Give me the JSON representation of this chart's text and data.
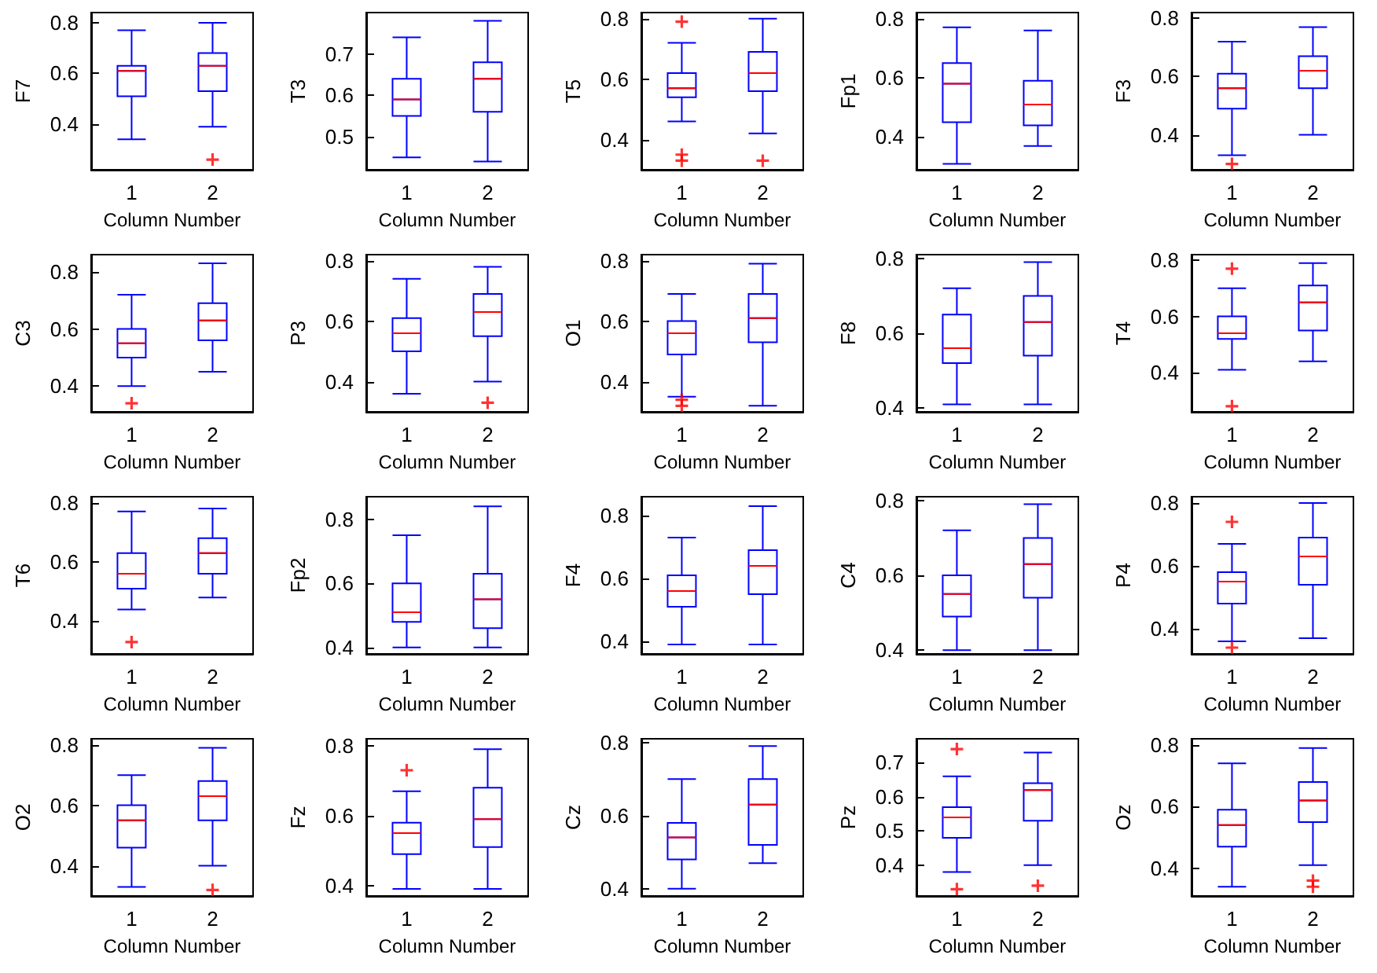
{
  "chart_data": [
    {
      "type": "box",
      "ylabel": "F7",
      "xlabel": "Column Number",
      "categories": [
        "1",
        "2"
      ],
      "ylim": [
        0.22,
        0.84
      ],
      "yticks": [
        0.4,
        0.6,
        0.8
      ],
      "grid": false,
      "series": [
        {
          "color": "#0000ff",
          "boxes": [
            {
              "low": 0.34,
              "q1": 0.51,
              "median": 0.61,
              "q3": 0.63,
              "high": 0.77
            },
            {
              "low": 0.39,
              "q1": 0.53,
              "median": 0.63,
              "q3": 0.68,
              "high": 0.8,
              "outliers": [
                0.26
              ]
            }
          ]
        }
      ]
    },
    {
      "type": "box",
      "ylabel": "T3",
      "xlabel": "Column Number",
      "categories": [
        "1",
        "2"
      ],
      "ylim": [
        0.42,
        0.8
      ],
      "yticks": [
        0.5,
        0.6,
        0.7
      ],
      "grid": false,
      "series": [
        {
          "color": "#0000ff",
          "boxes": [
            {
              "low": 0.45,
              "q1": 0.55,
              "median": 0.59,
              "q3": 0.64,
              "high": 0.74
            },
            {
              "low": 0.44,
              "q1": 0.56,
              "median": 0.64,
              "q3": 0.68,
              "high": 0.78
            }
          ]
        }
      ]
    },
    {
      "type": "box",
      "ylabel": "T5",
      "xlabel": "Column Number",
      "categories": [
        "1",
        "2"
      ],
      "ylim": [
        0.3,
        0.82
      ],
      "yticks": [
        0.4,
        0.6,
        0.8
      ],
      "grid": false,
      "series": [
        {
          "color": "#0000ff",
          "boxes": [
            {
              "low": 0.46,
              "q1": 0.54,
              "median": 0.57,
              "q3": 0.62,
              "high": 0.72,
              "outliers": [
                0.79,
                0.35,
                0.33
              ]
            },
            {
              "low": 0.42,
              "q1": 0.56,
              "median": 0.62,
              "q3": 0.69,
              "high": 0.8,
              "outliers": [
                0.33
              ]
            }
          ]
        }
      ]
    },
    {
      "type": "box",
      "ylabel": "Fp1",
      "xlabel": "Column Number",
      "categories": [
        "1",
        "2"
      ],
      "ylim": [
        0.29,
        0.82
      ],
      "yticks": [
        0.4,
        0.6,
        0.8
      ],
      "grid": false,
      "series": [
        {
          "color": "#0000ff",
          "boxes": [
            {
              "low": 0.31,
              "q1": 0.45,
              "median": 0.58,
              "q3": 0.65,
              "high": 0.77
            },
            {
              "low": 0.37,
              "q1": 0.44,
              "median": 0.51,
              "q3": 0.59,
              "high": 0.76
            }
          ]
        }
      ]
    },
    {
      "type": "box",
      "ylabel": "F3",
      "xlabel": "Column Number",
      "categories": [
        "1",
        "2"
      ],
      "ylim": [
        0.28,
        0.82
      ],
      "yticks": [
        0.4,
        0.6,
        0.8
      ],
      "grid": false,
      "series": [
        {
          "color": "#0000ff",
          "boxes": [
            {
              "low": 0.33,
              "q1": 0.49,
              "median": 0.56,
              "q3": 0.61,
              "high": 0.72,
              "outliers": [
                0.3
              ]
            },
            {
              "low": 0.4,
              "q1": 0.56,
              "median": 0.62,
              "q3": 0.67,
              "high": 0.77
            }
          ]
        }
      ]
    },
    {
      "type": "box",
      "ylabel": "C3",
      "xlabel": "Column Number",
      "categories": [
        "1",
        "2"
      ],
      "ylim": [
        0.31,
        0.86
      ],
      "yticks": [
        0.4,
        0.6,
        0.8
      ],
      "grid": false,
      "series": [
        {
          "color": "#0000ff",
          "boxes": [
            {
              "low": 0.4,
              "q1": 0.5,
              "median": 0.55,
              "q3": 0.6,
              "high": 0.72,
              "outliers": [
                0.34
              ]
            },
            {
              "low": 0.45,
              "q1": 0.56,
              "median": 0.63,
              "q3": 0.69,
              "high": 0.83
            }
          ]
        }
      ]
    },
    {
      "type": "box",
      "ylabel": "P3",
      "xlabel": "Column Number",
      "categories": [
        "1",
        "2"
      ],
      "ylim": [
        0.3,
        0.82
      ],
      "yticks": [
        0.4,
        0.6,
        0.8
      ],
      "grid": false,
      "series": [
        {
          "color": "#0000ff",
          "boxes": [
            {
              "low": 0.36,
              "q1": 0.5,
              "median": 0.56,
              "q3": 0.61,
              "high": 0.74
            },
            {
              "low": 0.4,
              "q1": 0.55,
              "median": 0.63,
              "q3": 0.69,
              "high": 0.78,
              "outliers": [
                0.33
              ]
            }
          ]
        }
      ]
    },
    {
      "type": "box",
      "ylabel": "O1",
      "xlabel": "Column Number",
      "categories": [
        "1",
        "2"
      ],
      "ylim": [
        0.3,
        0.82
      ],
      "yticks": [
        0.4,
        0.6,
        0.8
      ],
      "grid": false,
      "series": [
        {
          "color": "#0000ff",
          "boxes": [
            {
              "low": 0.35,
              "q1": 0.49,
              "median": 0.56,
              "q3": 0.6,
              "high": 0.69,
              "outliers": [
                0.34,
                0.32
              ]
            },
            {
              "low": 0.32,
              "q1": 0.53,
              "median": 0.61,
              "q3": 0.69,
              "high": 0.79
            }
          ]
        }
      ]
    },
    {
      "type": "box",
      "ylabel": "F8",
      "xlabel": "Column Number",
      "categories": [
        "1",
        "2"
      ],
      "ylim": [
        0.39,
        0.81
      ],
      "yticks": [
        0.4,
        0.6,
        0.8
      ],
      "grid": false,
      "series": [
        {
          "color": "#0000ff",
          "boxes": [
            {
              "low": 0.41,
              "q1": 0.52,
              "median": 0.56,
              "q3": 0.65,
              "high": 0.72
            },
            {
              "low": 0.41,
              "q1": 0.54,
              "median": 0.63,
              "q3": 0.7,
              "high": 0.79
            }
          ]
        }
      ]
    },
    {
      "type": "box",
      "ylabel": "T4",
      "xlabel": "Column Number",
      "categories": [
        "1",
        "2"
      ],
      "ylim": [
        0.26,
        0.82
      ],
      "yticks": [
        0.4,
        0.6,
        0.8
      ],
      "grid": false,
      "series": [
        {
          "color": "#0000ff",
          "boxes": [
            {
              "low": 0.41,
              "q1": 0.52,
              "median": 0.54,
              "q3": 0.6,
              "high": 0.7,
              "outliers": [
                0.77,
                0.28
              ]
            },
            {
              "low": 0.44,
              "q1": 0.55,
              "median": 0.65,
              "q3": 0.71,
              "high": 0.79
            }
          ]
        }
      ]
    },
    {
      "type": "box",
      "ylabel": "T6",
      "xlabel": "Column Number",
      "categories": [
        "1",
        "2"
      ],
      "ylim": [
        0.29,
        0.82
      ],
      "yticks": [
        0.4,
        0.6,
        0.8
      ],
      "grid": false,
      "series": [
        {
          "color": "#0000ff",
          "boxes": [
            {
              "low": 0.44,
              "q1": 0.51,
              "median": 0.56,
              "q3": 0.63,
              "high": 0.77,
              "outliers": [
                0.33
              ]
            },
            {
              "low": 0.48,
              "q1": 0.56,
              "median": 0.63,
              "q3": 0.68,
              "high": 0.78
            }
          ]
        }
      ]
    },
    {
      "type": "box",
      "ylabel": "Fp2",
      "xlabel": "Column Number",
      "categories": [
        "1",
        "2"
      ],
      "ylim": [
        0.38,
        0.87
      ],
      "yticks": [
        0.4,
        0.6,
        0.8
      ],
      "grid": false,
      "series": [
        {
          "color": "#0000ff",
          "boxes": [
            {
              "low": 0.4,
              "q1": 0.48,
              "median": 0.51,
              "q3": 0.6,
              "high": 0.75
            },
            {
              "low": 0.4,
              "q1": 0.46,
              "median": 0.55,
              "q3": 0.63,
              "high": 0.84
            }
          ]
        }
      ]
    },
    {
      "type": "box",
      "ylabel": "F4",
      "xlabel": "Column Number",
      "categories": [
        "1",
        "2"
      ],
      "ylim": [
        0.36,
        0.86
      ],
      "yticks": [
        0.4,
        0.6,
        0.8
      ],
      "grid": false,
      "series": [
        {
          "color": "#0000ff",
          "boxes": [
            {
              "low": 0.39,
              "q1": 0.51,
              "median": 0.56,
              "q3": 0.61,
              "high": 0.73
            },
            {
              "low": 0.39,
              "q1": 0.55,
              "median": 0.64,
              "q3": 0.69,
              "high": 0.83
            }
          ]
        }
      ]
    },
    {
      "type": "box",
      "ylabel": "C4",
      "xlabel": "Column Number",
      "categories": [
        "1",
        "2"
      ],
      "ylim": [
        0.39,
        0.81
      ],
      "yticks": [
        0.4,
        0.6,
        0.8
      ],
      "grid": false,
      "series": [
        {
          "color": "#0000ff",
          "boxes": [
            {
              "low": 0.4,
              "q1": 0.49,
              "median": 0.55,
              "q3": 0.6,
              "high": 0.72
            },
            {
              "low": 0.4,
              "q1": 0.54,
              "median": 0.63,
              "q3": 0.7,
              "high": 0.79
            }
          ]
        }
      ]
    },
    {
      "type": "box",
      "ylabel": "P4",
      "xlabel": "Column Number",
      "categories": [
        "1",
        "2"
      ],
      "ylim": [
        0.32,
        0.82
      ],
      "yticks": [
        0.4,
        0.6,
        0.8
      ],
      "grid": false,
      "series": [
        {
          "color": "#0000ff",
          "boxes": [
            {
              "low": 0.36,
              "q1": 0.48,
              "median": 0.55,
              "q3": 0.58,
              "high": 0.67,
              "outliers": [
                0.74,
                0.34
              ]
            },
            {
              "low": 0.37,
              "q1": 0.54,
              "median": 0.63,
              "q3": 0.69,
              "high": 0.8
            }
          ]
        }
      ]
    },
    {
      "type": "box",
      "ylabel": "O2",
      "xlabel": "Column Number",
      "categories": [
        "1",
        "2"
      ],
      "ylim": [
        0.3,
        0.82
      ],
      "yticks": [
        0.4,
        0.6,
        0.8
      ],
      "grid": false,
      "series": [
        {
          "color": "#0000ff",
          "boxes": [
            {
              "low": 0.33,
              "q1": 0.46,
              "median": 0.55,
              "q3": 0.6,
              "high": 0.7
            },
            {
              "low": 0.4,
              "q1": 0.55,
              "median": 0.63,
              "q3": 0.68,
              "high": 0.79,
              "outliers": [
                0.32
              ]
            }
          ]
        }
      ]
    },
    {
      "type": "box",
      "ylabel": "Fz",
      "xlabel": "Column Number",
      "categories": [
        "1",
        "2"
      ],
      "ylim": [
        0.37,
        0.82
      ],
      "yticks": [
        0.4,
        0.6,
        0.8
      ],
      "grid": false,
      "series": [
        {
          "color": "#0000ff",
          "boxes": [
            {
              "low": 0.39,
              "q1": 0.49,
              "median": 0.55,
              "q3": 0.58,
              "high": 0.67,
              "outliers": [
                0.73
              ]
            },
            {
              "low": 0.39,
              "q1": 0.51,
              "median": 0.59,
              "q3": 0.68,
              "high": 0.79
            }
          ]
        }
      ]
    },
    {
      "type": "box",
      "ylabel": "Cz",
      "xlabel": "Column Number",
      "categories": [
        "1",
        "2"
      ],
      "ylim": [
        0.38,
        0.81
      ],
      "yticks": [
        0.4,
        0.6,
        0.8
      ],
      "grid": false,
      "series": [
        {
          "color": "#0000ff",
          "boxes": [
            {
              "low": 0.4,
              "q1": 0.48,
              "median": 0.54,
              "q3": 0.58,
              "high": 0.7
            },
            {
              "low": 0.47,
              "q1": 0.52,
              "median": 0.63,
              "q3": 0.7,
              "high": 0.79
            }
          ]
        }
      ]
    },
    {
      "type": "box",
      "ylabel": "Pz",
      "xlabel": "Column Number",
      "categories": [
        "1",
        "2"
      ],
      "ylim": [
        0.31,
        0.77
      ],
      "yticks": [
        0.4,
        0.5,
        0.6,
        0.7
      ],
      "grid": false,
      "series": [
        {
          "color": "#0000ff",
          "boxes": [
            {
              "low": 0.38,
              "q1": 0.48,
              "median": 0.54,
              "q3": 0.57,
              "high": 0.66,
              "outliers": [
                0.74,
                0.33
              ]
            },
            {
              "low": 0.4,
              "q1": 0.53,
              "median": 0.62,
              "q3": 0.64,
              "high": 0.73,
              "outliers": [
                0.34
              ]
            }
          ]
        }
      ]
    },
    {
      "type": "box",
      "ylabel": "Oz",
      "xlabel": "Column Number",
      "categories": [
        "1",
        "2"
      ],
      "ylim": [
        0.31,
        0.82
      ],
      "yticks": [
        0.4,
        0.6,
        0.8
      ],
      "grid": false,
      "series": [
        {
          "color": "#0000ff",
          "boxes": [
            {
              "low": 0.34,
              "q1": 0.47,
              "median": 0.54,
              "q3": 0.59,
              "high": 0.74
            },
            {
              "low": 0.41,
              "q1": 0.55,
              "median": 0.62,
              "q3": 0.68,
              "high": 0.79,
              "outliers": [
                0.36,
                0.34
              ]
            }
          ]
        }
      ]
    }
  ]
}
